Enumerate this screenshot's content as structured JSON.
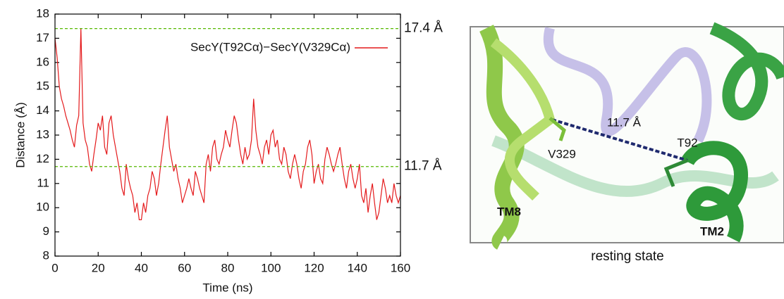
{
  "chart_data": {
    "type": "line",
    "x_label": "Time (ns)",
    "y_label": "Distance (Å)",
    "x": [
      0,
      1,
      2,
      3,
      4,
      5,
      6,
      7,
      8,
      9,
      10,
      11,
      12,
      13,
      14,
      15,
      16,
      17,
      18,
      19,
      20,
      21,
      22,
      23,
      24,
      25,
      26,
      27,
      28,
      29,
      30,
      31,
      32,
      33,
      34,
      35,
      36,
      37,
      38,
      39,
      40,
      41,
      42,
      43,
      44,
      45,
      46,
      47,
      48,
      49,
      50,
      51,
      52,
      53,
      54,
      55,
      56,
      57,
      58,
      59,
      60,
      61,
      62,
      63,
      64,
      65,
      66,
      67,
      68,
      69,
      70,
      71,
      72,
      73,
      74,
      75,
      76,
      77,
      78,
      79,
      80,
      81,
      82,
      83,
      84,
      85,
      86,
      87,
      88,
      89,
      90,
      91,
      92,
      93,
      94,
      95,
      96,
      97,
      98,
      99,
      100,
      101,
      102,
      103,
      104,
      105,
      106,
      107,
      108,
      109,
      110,
      111,
      112,
      113,
      114,
      115,
      116,
      117,
      118,
      119,
      120,
      121,
      122,
      123,
      124,
      125,
      126,
      127,
      128,
      129,
      130,
      131,
      132,
      133,
      134,
      135,
      136,
      137,
      138,
      139,
      140,
      141,
      142,
      143,
      144,
      145,
      146,
      147,
      148,
      149,
      150,
      151,
      152,
      153,
      154,
      155,
      156,
      157,
      158,
      159,
      160
    ],
    "series": [
      {
        "name": "SecY(T92Cα)−SecY(V329Cα)",
        "color": "#e41a1c",
        "values": [
          17,
          16.2,
          15,
          14.5,
          14.2,
          13.8,
          13.5,
          13.2,
          12.8,
          12.5,
          13.4,
          13.8,
          17.4,
          13.5,
          12.8,
          12.5,
          11.8,
          11.5,
          12.2,
          12.8,
          13.5,
          13.2,
          13.8,
          12.5,
          12.2,
          13.5,
          13.8,
          13,
          12.5,
          12,
          11.5,
          10.8,
          10.5,
          11.8,
          11.2,
          10.8,
          10.5,
          9.8,
          10.2,
          9.5,
          9.5,
          10.2,
          9.8,
          10.5,
          10.8,
          11.5,
          11.2,
          10.5,
          11,
          11.8,
          12.5,
          13.2,
          13.8,
          12.5,
          12,
          11.5,
          11.8,
          11.2,
          10.8,
          10.2,
          10.5,
          10.8,
          11.2,
          10.8,
          10.5,
          11.5,
          11.2,
          10.8,
          10.5,
          10.2,
          11.8,
          12.2,
          11.5,
          12.5,
          12.8,
          12,
          11.8,
          12.2,
          12.5,
          13.2,
          12.8,
          12.5,
          13.2,
          13.8,
          13.5,
          12.8,
          12.2,
          11.8,
          12.5,
          12,
          12.2,
          12.8,
          14.5,
          13.2,
          12.5,
          12.2,
          11.8,
          12.5,
          12.8,
          12.2,
          13,
          13.2,
          12.5,
          12.8,
          12,
          11.8,
          12.5,
          12.2,
          11.5,
          11.2,
          11.8,
          12.2,
          11.8,
          11.2,
          10.8,
          11.5,
          11.8,
          12.5,
          12.8,
          12.2,
          11,
          11.5,
          11.8,
          11.2,
          11,
          12,
          12.5,
          12.2,
          11.8,
          11.5,
          11.8,
          12.2,
          12.5,
          11.8,
          11.2,
          10.8,
          11.5,
          11.8,
          11.2,
          10.8,
          11.2,
          11.8,
          10.5,
          10.2,
          10.8,
          9.8,
          10.5,
          11,
          10.2,
          9.5,
          9.8,
          10.5,
          11.2,
          10.8,
          10.2,
          10.5,
          10.2,
          11,
          10.5,
          10.2,
          10.5
        ]
      }
    ],
    "xlim": [
      0,
      160
    ],
    "xticks": [
      0,
      20,
      40,
      60,
      80,
      100,
      120,
      140,
      160
    ],
    "ylim": [
      8,
      18
    ],
    "yticks": [
      8,
      9,
      10,
      11,
      12,
      13,
      14,
      15,
      16,
      17,
      18
    ],
    "hlines": [
      {
        "value": 17.4,
        "label": "17.4 Å"
      },
      {
        "value": 11.7,
        "label": "11.7 Å"
      }
    ],
    "hline_color": "#55b800",
    "legend": "top-right"
  },
  "image_panel": {
    "distance_label": "11.7 Å",
    "residue_1": "V329",
    "residue_2": "T92",
    "helix_1": "TM8",
    "helix_2": "TM2",
    "caption": "resting state"
  }
}
